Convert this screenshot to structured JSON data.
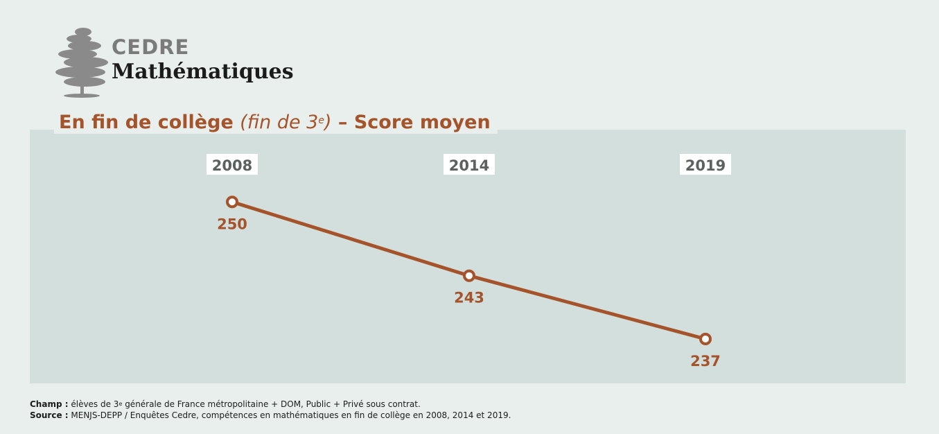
{
  "brand": {
    "top": "CEDRE",
    "bottom": "Mathématiques",
    "logo_icon": "cedar-tree-icon"
  },
  "title": {
    "part1": "En fin de collège ",
    "part2_italic": "(fin de 3",
    "sup": "e",
    "part3_italic": ")",
    "part4": " – Score moyen"
  },
  "chart_data": {
    "type": "line",
    "categories": [
      "2008",
      "2014",
      "2019"
    ],
    "series": [
      {
        "values": [
          250,
          243,
          237
        ]
      }
    ],
    "data_labels": [
      "250",
      "243",
      "237"
    ],
    "title": "En fin de collège (fin de 3e) – Score moyen",
    "xlabel": "",
    "ylabel": "",
    "ylim": [
      232,
      256
    ],
    "grid": false,
    "colors": {
      "line": "#a4532a",
      "category_text": "#5a615f",
      "panel": "#d3dfdc"
    }
  },
  "footer": {
    "champ_label": "Champ :",
    "champ_text_a": " élèves de 3",
    "champ_sup": "e",
    "champ_text_b": " générale de France métropolitaine + DOM, Public + Privé sous contrat.",
    "source_label": "Source :",
    "source_text": " MENJS-DEPP / Enquêtes Cedre, compétences en mathématiques en fin de collège en 2008, 2014 et 2019."
  }
}
